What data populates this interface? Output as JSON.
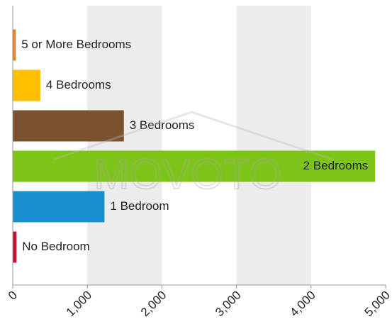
{
  "chart_data": {
    "type": "bar",
    "orientation": "horizontal",
    "categories": [
      "5 or More Bedrooms",
      "4 Bedrooms",
      "3 Bedrooms",
      "2 Bedrooms",
      "1 Bedroom",
      "No Bedroom"
    ],
    "values": [
      40,
      370,
      1490,
      4860,
      1230,
      50
    ],
    "colors": [
      "#f07f1e",
      "#ffc000",
      "#7a5230",
      "#7cc417",
      "#1a8fd0",
      "#c8102e"
    ],
    "xlim": [
      0,
      5000
    ],
    "xticks": [
      0,
      {
        "value": 1000,
        "label": "1,000"
      },
      {
        "value": 2000,
        "label": "2,000"
      },
      {
        "value": 3000,
        "label": "3,000"
      },
      {
        "value": 4000,
        "label": "4,000"
      },
      {
        "value": 5000,
        "label": "5,000"
      }
    ],
    "alternating_bands": true,
    "watermark": "MOVOTO"
  }
}
